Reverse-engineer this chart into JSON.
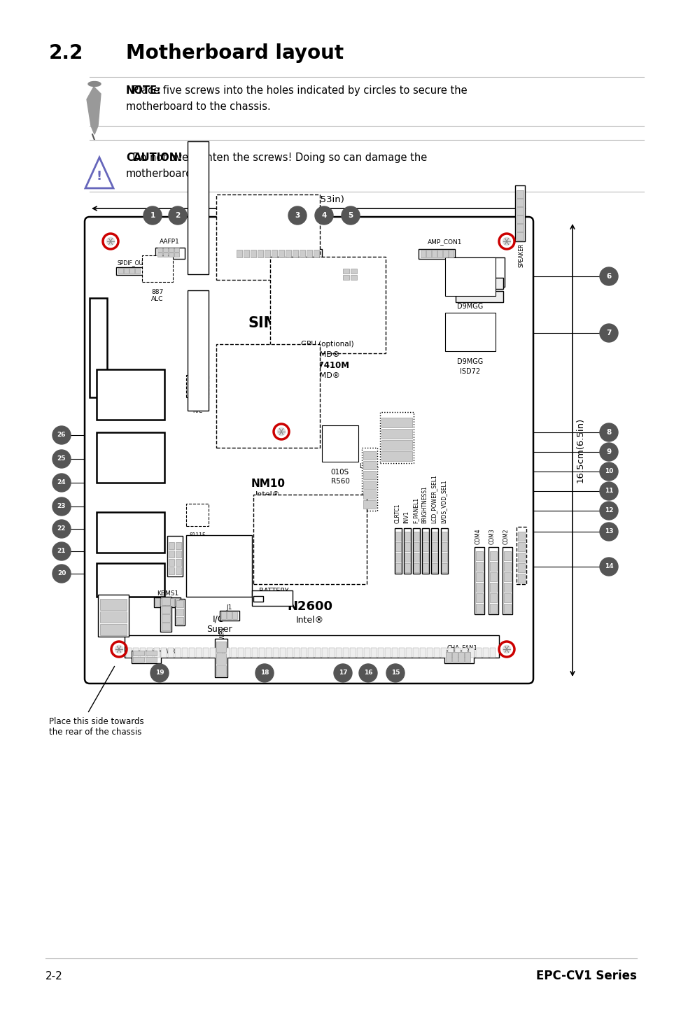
{
  "title_number": "2.2",
  "title_text": "Motherboard layout",
  "note_bold": "NOTE:",
  "note_body": "  Place five screws into the holes indicated by circles to secure the\nmotherboard to the chassis.",
  "caution_bold": "CAUTION!",
  "caution_body": "  Do not overtighten the screws! Doing so can damage the\nmotherboard.",
  "footer_left": "2-2",
  "footer_right": "EPC-CV1 Series",
  "bg_color": "#ffffff",
  "gray_color": "#555555",
  "light_gray": "#cccccc",
  "red_color": "#cc0000",
  "blue_color": "#6666bb",
  "dim_top": "11.5cm(4.53in)",
  "dim_right": "16.5cm(6.5in)",
  "bottom_note": "Place this side towards\nthe rear of the chassis"
}
